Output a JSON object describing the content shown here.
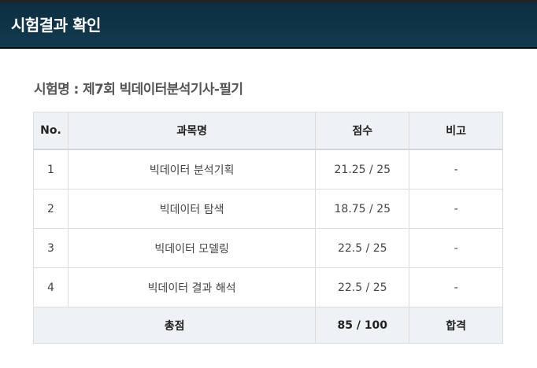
{
  "header": {
    "title": "시험결과 확인"
  },
  "exam": {
    "label": "시험명 : 제7회 빅데이터분석기사-필기"
  },
  "table": {
    "columns": {
      "no": "No.",
      "subject": "과목명",
      "score": "점수",
      "note": "비고"
    },
    "rows": [
      {
        "no": "1",
        "subject": "빅데이터 분석기획",
        "score": "21.25 / 25",
        "note": "-"
      },
      {
        "no": "2",
        "subject": "빅데이터 탐색",
        "score": "18.75 / 25",
        "note": "-"
      },
      {
        "no": "3",
        "subject": "빅데이터 모델링",
        "score": "22.5 / 25",
        "note": "-"
      },
      {
        "no": "4",
        "subject": "빅데이터 결과 해석",
        "score": "22.5 / 25",
        "note": "-"
      }
    ],
    "total": {
      "label": "총점",
      "score": "85 / 100",
      "result": "합격"
    }
  }
}
